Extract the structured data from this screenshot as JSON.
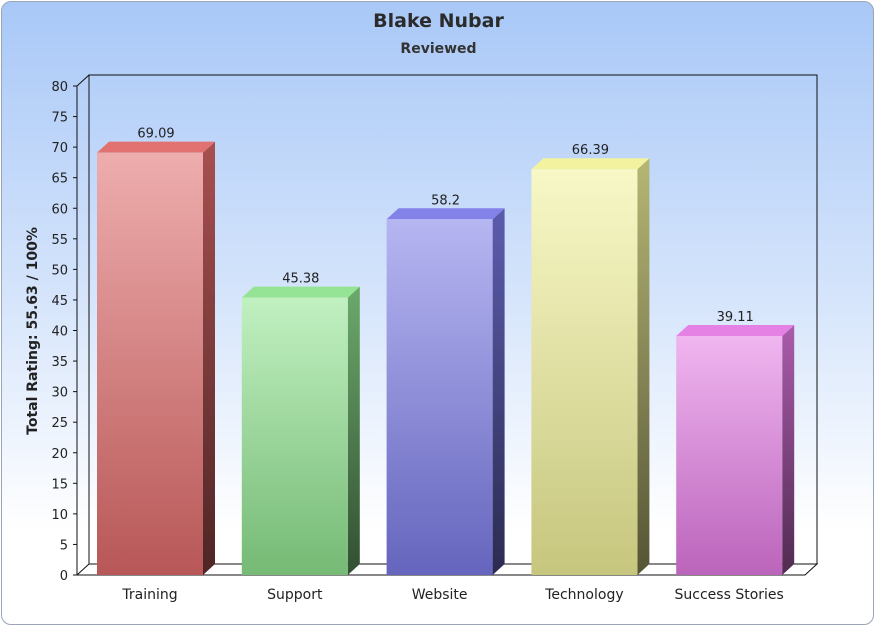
{
  "chart_data": {
    "type": "bar",
    "title": "Blake Nubar",
    "subtitle": "Reviewed",
    "xlabel": "",
    "ylabel": "Total Rating: 55.63 / 100%",
    "categories": [
      "Training",
      "Support",
      "Website",
      "Technology",
      "Success Stories"
    ],
    "values": [
      69.09,
      45.38,
      58.2,
      66.39,
      39.11
    ],
    "value_labels": [
      "69.09",
      "45.38",
      "58.2",
      "66.39",
      "39.11"
    ],
    "ylim": [
      0,
      80
    ],
    "yticks": [
      "0",
      "5",
      "10",
      "15",
      "20",
      "25",
      "30",
      "35",
      "40",
      "45",
      "50",
      "55",
      "60",
      "65",
      "70",
      "75",
      "80"
    ],
    "grid": false,
    "legend": "none",
    "colors": [
      "#e06a6a",
      "#8fe38f",
      "#7b7be8",
      "#f2f29a",
      "#e47ae4"
    ]
  }
}
